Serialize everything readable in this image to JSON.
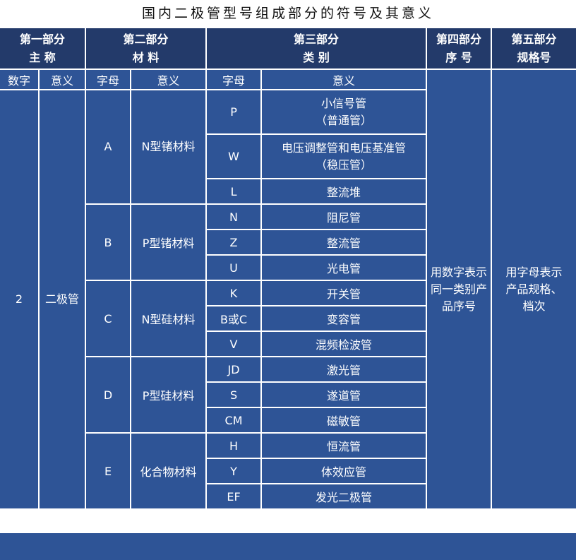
{
  "title": "国内二极管型号组成部分的符号及其意义",
  "header": {
    "p1": [
      "第一部分",
      "主 称"
    ],
    "p2": [
      "第二部分",
      "材 料"
    ],
    "p3": [
      "第三部分",
      "类 别"
    ],
    "p4": [
      "第四部分",
      "序 号"
    ],
    "p5": [
      "第五部分",
      "规格号"
    ]
  },
  "subheader": {
    "digit": "数字",
    "meaning": "意义",
    "letter": "字母"
  },
  "part1": {
    "digit": "2",
    "meaning": "二极管"
  },
  "part4": "用数字表示同一类别产品序号",
  "part5": "用字母表示产品规格、档次",
  "materials": [
    {
      "letter": "A",
      "meaning": "N型锗材料"
    },
    {
      "letter": "B",
      "meaning": "P型锗材料"
    },
    {
      "letter": "C",
      "meaning": "N型硅材料"
    },
    {
      "letter": "D",
      "meaning": "P型硅材料"
    },
    {
      "letter": "E",
      "meaning": "化合物材料"
    }
  ],
  "types": [
    {
      "letter": "P",
      "meaning": "小信号管",
      "note": "（普通管）"
    },
    {
      "letter": "W",
      "meaning": "电压调整管和电压基准管",
      "note": "（稳压管）"
    },
    {
      "letter": "L",
      "meaning": "整流堆"
    },
    {
      "letter": "N",
      "meaning": "阻尼管"
    },
    {
      "letter": "Z",
      "meaning": "整流管"
    },
    {
      "letter": "U",
      "meaning": "光电管"
    },
    {
      "letter": "K",
      "meaning": "开关管"
    },
    {
      "letter": "B或C",
      "meaning": "变容管"
    },
    {
      "letter": "V",
      "meaning": "混频检波管"
    },
    {
      "letter": "JD",
      "meaning": "激光管"
    },
    {
      "letter": "S",
      "meaning": "遂道管"
    },
    {
      "letter": "CM",
      "meaning": "磁敏管"
    },
    {
      "letter": "H",
      "meaning": "恒流管"
    },
    {
      "letter": "Y",
      "meaning": "体效应管"
    },
    {
      "letter": "EF",
      "meaning": "发光二极管"
    }
  ]
}
